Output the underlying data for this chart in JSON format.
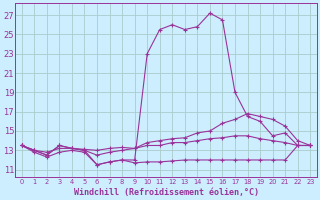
{
  "background_color": "#cceeff",
  "grid_color": "#aacccc",
  "line_color": "#993399",
  "marker": "+",
  "xlabel": "Windchill (Refroidissement éolien,°C)",
  "xlabel_fontsize": 6.0,
  "ylabel_ticks": [
    11,
    13,
    15,
    17,
    19,
    21,
    23,
    25,
    27
  ],
  "xlim": [
    -0.5,
    23.5
  ],
  "ylim": [
    10.2,
    28.2
  ],
  "xtick_labels": [
    "0",
    "1",
    "2",
    "3",
    "4",
    "5",
    "6",
    "7",
    "8",
    "9",
    "10",
    "11",
    "12",
    "13",
    "14",
    "15",
    "16",
    "17",
    "18",
    "19",
    "20",
    "21",
    "22",
    "23"
  ],
  "series": [
    {
      "x": [
        0,
        1,
        2,
        3,
        4,
        5,
        6,
        7,
        8,
        9,
        10,
        11,
        12,
        13,
        14,
        15,
        16,
        17,
        18,
        19,
        20,
        21,
        22,
        23
      ],
      "y": [
        13.5,
        13.0,
        12.5,
        13.5,
        13.2,
        13.0,
        11.5,
        11.8,
        12.0,
        12.0,
        23.0,
        25.5,
        26.0,
        25.5,
        25.8,
        27.2,
        26.5,
        19.0,
        16.5,
        16.0,
        14.5,
        14.8,
        13.5,
        13.5
      ]
    },
    {
      "x": [
        0,
        1,
        2,
        3,
        4,
        5,
        6,
        7,
        8,
        9,
        10,
        11,
        12,
        13,
        14,
        15,
        16,
        17,
        18,
        19,
        20,
        21,
        22,
        23
      ],
      "y": [
        13.5,
        13.0,
        12.8,
        13.2,
        13.2,
        13.1,
        13.0,
        13.2,
        13.3,
        13.2,
        13.8,
        14.0,
        14.2,
        14.3,
        14.8,
        15.0,
        15.8,
        16.2,
        16.8,
        16.5,
        16.2,
        15.5,
        14.0,
        13.5
      ]
    },
    {
      "x": [
        0,
        1,
        2,
        3,
        4,
        5,
        6,
        7,
        8,
        9,
        10,
        11,
        12,
        13,
        14,
        15,
        16,
        17,
        18,
        19,
        20,
        21,
        22,
        23
      ],
      "y": [
        13.5,
        13.0,
        12.5,
        13.5,
        13.2,
        13.0,
        12.5,
        12.8,
        13.0,
        13.2,
        13.5,
        13.5,
        13.8,
        13.8,
        14.0,
        14.2,
        14.3,
        14.5,
        14.5,
        14.2,
        14.0,
        13.8,
        13.5,
        13.5
      ]
    },
    {
      "x": [
        0,
        1,
        2,
        3,
        4,
        5,
        6,
        7,
        8,
        9,
        10,
        11,
        12,
        13,
        14,
        15,
        16,
        17,
        18,
        19,
        20,
        21,
        22,
        23
      ],
      "y": [
        13.5,
        12.8,
        12.3,
        12.8,
        13.0,
        12.8,
        11.5,
        11.8,
        12.0,
        11.7,
        11.8,
        11.8,
        11.9,
        12.0,
        12.0,
        12.0,
        12.0,
        12.0,
        12.0,
        12.0,
        12.0,
        12.0,
        13.5,
        13.5
      ]
    }
  ]
}
